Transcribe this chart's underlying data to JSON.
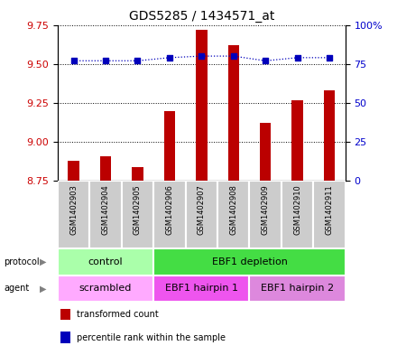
{
  "title": "GDS5285 / 1434571_at",
  "samples": [
    "GSM1402903",
    "GSM1402904",
    "GSM1402905",
    "GSM1402906",
    "GSM1402907",
    "GSM1402908",
    "GSM1402909",
    "GSM1402910",
    "GSM1402911"
  ],
  "transformed_counts": [
    8.88,
    8.91,
    8.84,
    9.2,
    9.72,
    9.62,
    9.12,
    9.27,
    9.33
  ],
  "percentile_ranks": [
    77,
    77,
    77,
    79,
    80,
    80,
    77,
    79,
    79
  ],
  "ylim_left": [
    8.75,
    9.75
  ],
  "ylim_right": [
    0,
    100
  ],
  "yticks_left": [
    8.75,
    9.0,
    9.25,
    9.5,
    9.75
  ],
  "yticks_right": [
    0,
    25,
    50,
    75,
    100
  ],
  "ytick_labels_right": [
    "0",
    "25",
    "50",
    "75",
    "100%"
  ],
  "bar_color": "#bb0000",
  "dot_color": "#0000bb",
  "bar_bottom": 8.75,
  "protocol_groups": [
    {
      "label": "control",
      "start": 0,
      "end": 3,
      "color": "#aaffaa"
    },
    {
      "label": "EBF1 depletion",
      "start": 3,
      "end": 9,
      "color": "#44dd44"
    }
  ],
  "agent_groups": [
    {
      "label": "scrambled",
      "start": 0,
      "end": 3,
      "color": "#ffaaff"
    },
    {
      "label": "EBF1 hairpin 1",
      "start": 3,
      "end": 6,
      "color": "#ee55ee"
    },
    {
      "label": "EBF1 hairpin 2",
      "start": 6,
      "end": 9,
      "color": "#dd88dd"
    }
  ],
  "legend_items": [
    {
      "label": "transformed count",
      "color": "#bb0000"
    },
    {
      "label": "percentile rank within the sample",
      "color": "#0000bb"
    }
  ],
  "background_color": "#ffffff",
  "grid_color": "#000000",
  "tick_label_color_left": "#cc0000",
  "tick_label_color_right": "#0000cc",
  "sample_box_color": "#cccccc",
  "bar_width": 0.35
}
